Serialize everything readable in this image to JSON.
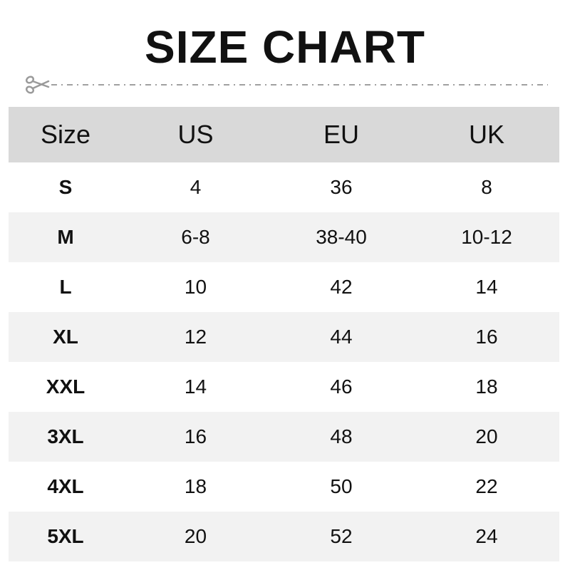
{
  "title": "SIZE CHART",
  "icons": {
    "cut": "scissors-icon"
  },
  "colors": {
    "header_bg": "#d9d9d9",
    "alt_row_bg": "#f2f2f2",
    "divider": "#a0a0a0"
  },
  "table": {
    "headers": [
      "Size",
      "US",
      "EU",
      "UK"
    ],
    "rows": [
      [
        "S",
        "4",
        "36",
        "8"
      ],
      [
        "M",
        "6-8",
        "38-40",
        "10-12"
      ],
      [
        "L",
        "10",
        "42",
        "14"
      ],
      [
        "XL",
        "12",
        "44",
        "16"
      ],
      [
        "XXL",
        "14",
        "46",
        "18"
      ],
      [
        "3XL",
        "16",
        "48",
        "20"
      ],
      [
        "4XL",
        "18",
        "50",
        "22"
      ],
      [
        "5XL",
        "20",
        "52",
        "24"
      ]
    ]
  }
}
